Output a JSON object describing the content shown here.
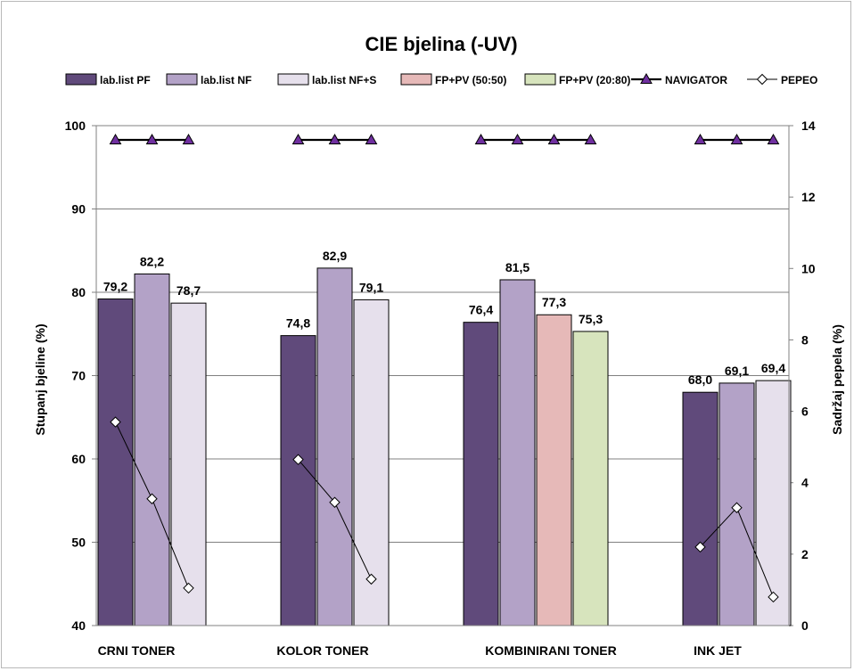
{
  "chart_data": {
    "type": "bar",
    "title": "CIE bjelina (-UV)",
    "ylabel": "Stupanj bjeline (%)",
    "y2label": "Sadržaj pepela (%)",
    "ylim": [
      40,
      100
    ],
    "y2lim": [
      0,
      14
    ],
    "yticks": [
      "40",
      "50",
      "60",
      "70",
      "80",
      "90",
      "100"
    ],
    "y2ticks": [
      "0",
      "2",
      "4",
      "6",
      "8",
      "10",
      "12",
      "14"
    ],
    "grid": true,
    "legend_position": "top",
    "categories": [
      "CRNI TONER",
      "KOLOR TONER",
      "KOMBINIRANI TONER",
      "INK JET"
    ],
    "series": [
      {
        "name": "lab.list PF",
        "color": "#604a7b",
        "values": [
          79.2,
          74.8,
          76.4,
          68.0
        ],
        "labels": [
          "79,2",
          "74,8",
          "76,4",
          "68,0"
        ]
      },
      {
        "name": "lab.list NF",
        "color": "#b3a2c7",
        "values": [
          82.2,
          82.9,
          81.5,
          69.1
        ],
        "labels": [
          "82,2",
          "82,9",
          "81,5",
          "69,1"
        ]
      },
      {
        "name": "lab.list NF+S",
        "color": "#e6e0ec",
        "values": [
          78.7,
          79.1,
          null,
          69.4
        ],
        "labels": [
          "78,7",
          "79,1",
          "",
          "69,4"
        ]
      },
      {
        "name": "FP+PV (50:50)",
        "color": "#e6b9b8",
        "values": [
          null,
          null,
          77.3,
          null
        ],
        "labels": [
          "",
          "",
          "77,3",
          ""
        ]
      },
      {
        "name": "FP+PV (20:80)",
        "color": "#d7e4bd",
        "values": [
          null,
          null,
          75.3,
          null
        ],
        "labels": [
          "",
          "",
          "75,3",
          ""
        ]
      }
    ],
    "line_series": [
      {
        "name": "NAVIGATOR",
        "axis": "right",
        "marker": "triangle",
        "color": "#7030a0",
        "groups": [
          [
            13.6,
            13.6,
            13.6
          ],
          [
            13.6,
            13.6,
            13.6
          ],
          [
            13.6,
            13.6,
            13.6,
            13.6
          ],
          [
            13.6,
            13.6,
            13.6
          ]
        ]
      },
      {
        "name": "PEPEO",
        "axis": "right",
        "marker": "diamond",
        "color": "#ffffff",
        "groups": [
          [
            5.7,
            3.55,
            1.05
          ],
          [
            4.65,
            3.45,
            1.3
          ],
          [],
          [
            2.2,
            3.3,
            0.8
          ]
        ]
      }
    ]
  }
}
